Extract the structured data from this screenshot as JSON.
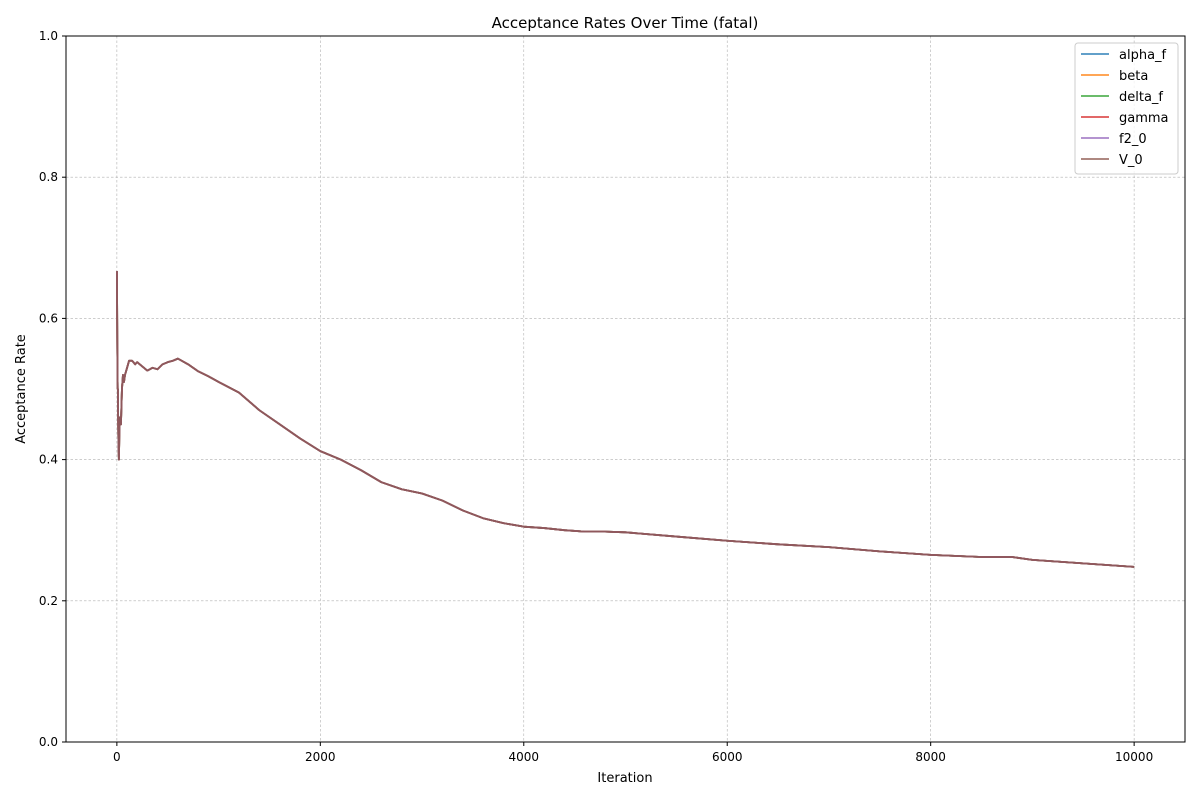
{
  "chart_data": {
    "type": "line",
    "title": "Acceptance Rates Over Time (fatal)",
    "xlabel": "Iteration",
    "ylabel": "Acceptance Rate",
    "xlim": [
      -500,
      10500
    ],
    "ylim": [
      0.0,
      1.0
    ],
    "xticks": [
      0,
      2000,
      4000,
      6000,
      8000,
      10000
    ],
    "xtick_labels": [
      "0",
      "2000",
      "4000",
      "6000",
      "8000",
      "10000"
    ],
    "yticks": [
      0.0,
      0.2,
      0.4,
      0.6,
      0.8,
      1.0
    ],
    "ytick_labels": [
      "0.0",
      "0.2",
      "0.4",
      "0.6",
      "0.8",
      "1.0"
    ],
    "grid": true,
    "legend_position": "top-right",
    "x": [
      1,
      3,
      5,
      8,
      10,
      13,
      16,
      20,
      25,
      30,
      40,
      50,
      60,
      70,
      80,
      100,
      120,
      150,
      180,
      200,
      250,
      300,
      350,
      400,
      450,
      500,
      550,
      600,
      700,
      800,
      900,
      1000,
      1200,
      1400,
      1600,
      1800,
      2000,
      2200,
      2400,
      2600,
      2800,
      3000,
      3200,
      3400,
      3600,
      3800,
      4000,
      4200,
      4400,
      4600,
      4800,
      5000,
      5500,
      6000,
      6500,
      7000,
      7500,
      8000,
      8500,
      8800,
      9000,
      9500,
      10000
    ],
    "series": [
      {
        "name": "alpha_f",
        "color": "#1f77b4",
        "values": [
          0.667,
          0.6,
          0.55,
          0.5,
          0.5,
          0.45,
          0.42,
          0.4,
          0.44,
          0.46,
          0.45,
          0.5,
          0.52,
          0.51,
          0.52,
          0.53,
          0.54,
          0.54,
          0.535,
          0.538,
          0.532,
          0.526,
          0.53,
          0.528,
          0.535,
          0.538,
          0.54,
          0.543,
          0.535,
          0.525,
          0.518,
          0.51,
          0.495,
          0.47,
          0.45,
          0.43,
          0.412,
          0.4,
          0.385,
          0.368,
          0.358,
          0.352,
          0.342,
          0.328,
          0.317,
          0.31,
          0.305,
          0.303,
          0.3,
          0.298,
          0.298,
          0.297,
          0.291,
          0.285,
          0.28,
          0.276,
          0.27,
          0.265,
          0.262,
          0.262,
          0.258,
          0.253,
          0.248
        ]
      },
      {
        "name": "beta",
        "color": "#ff7f0e",
        "values": [
          0.667,
          0.6,
          0.55,
          0.5,
          0.5,
          0.45,
          0.42,
          0.4,
          0.44,
          0.46,
          0.45,
          0.5,
          0.52,
          0.51,
          0.52,
          0.53,
          0.54,
          0.54,
          0.535,
          0.538,
          0.532,
          0.526,
          0.53,
          0.528,
          0.535,
          0.538,
          0.54,
          0.543,
          0.535,
          0.525,
          0.518,
          0.51,
          0.495,
          0.47,
          0.45,
          0.43,
          0.412,
          0.4,
          0.385,
          0.368,
          0.358,
          0.352,
          0.342,
          0.328,
          0.317,
          0.31,
          0.305,
          0.303,
          0.3,
          0.298,
          0.298,
          0.297,
          0.291,
          0.285,
          0.28,
          0.276,
          0.27,
          0.265,
          0.262,
          0.262,
          0.258,
          0.253,
          0.248
        ]
      },
      {
        "name": "delta_f",
        "color": "#2ca02c",
        "values": [
          0.667,
          0.6,
          0.55,
          0.5,
          0.5,
          0.45,
          0.42,
          0.4,
          0.44,
          0.46,
          0.45,
          0.5,
          0.52,
          0.51,
          0.52,
          0.53,
          0.54,
          0.54,
          0.535,
          0.538,
          0.532,
          0.526,
          0.53,
          0.528,
          0.535,
          0.538,
          0.54,
          0.543,
          0.535,
          0.525,
          0.518,
          0.51,
          0.495,
          0.47,
          0.45,
          0.43,
          0.412,
          0.4,
          0.385,
          0.368,
          0.358,
          0.352,
          0.342,
          0.328,
          0.317,
          0.31,
          0.305,
          0.303,
          0.3,
          0.298,
          0.298,
          0.297,
          0.291,
          0.285,
          0.28,
          0.276,
          0.27,
          0.265,
          0.262,
          0.262,
          0.258,
          0.253,
          0.248
        ]
      },
      {
        "name": "gamma",
        "color": "#d62728",
        "values": [
          0.667,
          0.6,
          0.55,
          0.5,
          0.5,
          0.45,
          0.42,
          0.4,
          0.44,
          0.46,
          0.45,
          0.5,
          0.52,
          0.51,
          0.52,
          0.53,
          0.54,
          0.54,
          0.535,
          0.538,
          0.532,
          0.526,
          0.53,
          0.528,
          0.535,
          0.538,
          0.54,
          0.543,
          0.535,
          0.525,
          0.518,
          0.51,
          0.495,
          0.47,
          0.45,
          0.43,
          0.412,
          0.4,
          0.385,
          0.368,
          0.358,
          0.352,
          0.342,
          0.328,
          0.317,
          0.31,
          0.305,
          0.303,
          0.3,
          0.298,
          0.298,
          0.297,
          0.291,
          0.285,
          0.28,
          0.276,
          0.27,
          0.265,
          0.262,
          0.262,
          0.258,
          0.253,
          0.248
        ]
      },
      {
        "name": "f2_0",
        "color": "#9467bd",
        "values": [
          0.667,
          0.6,
          0.55,
          0.5,
          0.5,
          0.45,
          0.42,
          0.4,
          0.44,
          0.46,
          0.45,
          0.5,
          0.52,
          0.51,
          0.52,
          0.53,
          0.54,
          0.54,
          0.535,
          0.538,
          0.532,
          0.526,
          0.53,
          0.528,
          0.535,
          0.538,
          0.54,
          0.543,
          0.535,
          0.525,
          0.518,
          0.51,
          0.495,
          0.47,
          0.45,
          0.43,
          0.412,
          0.4,
          0.385,
          0.368,
          0.358,
          0.352,
          0.342,
          0.328,
          0.317,
          0.31,
          0.305,
          0.303,
          0.3,
          0.298,
          0.298,
          0.297,
          0.291,
          0.285,
          0.28,
          0.276,
          0.27,
          0.265,
          0.262,
          0.262,
          0.258,
          0.253,
          0.248
        ]
      },
      {
        "name": "V_0",
        "color": "#8c564b",
        "values": [
          0.667,
          0.6,
          0.55,
          0.5,
          0.5,
          0.45,
          0.42,
          0.4,
          0.44,
          0.46,
          0.45,
          0.5,
          0.52,
          0.51,
          0.52,
          0.53,
          0.54,
          0.54,
          0.535,
          0.538,
          0.532,
          0.526,
          0.53,
          0.528,
          0.535,
          0.538,
          0.54,
          0.543,
          0.535,
          0.525,
          0.518,
          0.51,
          0.495,
          0.47,
          0.45,
          0.43,
          0.412,
          0.4,
          0.385,
          0.368,
          0.358,
          0.352,
          0.342,
          0.328,
          0.317,
          0.31,
          0.305,
          0.303,
          0.3,
          0.298,
          0.298,
          0.297,
          0.291,
          0.285,
          0.28,
          0.276,
          0.27,
          0.265,
          0.262,
          0.262,
          0.258,
          0.253,
          0.248
        ]
      }
    ]
  }
}
